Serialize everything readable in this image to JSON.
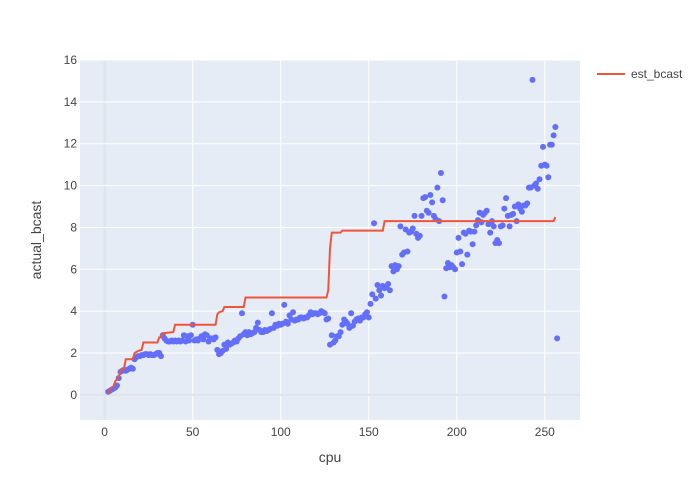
{
  "chart_data": {
    "type": "scatter",
    "xlabel": "cpu",
    "ylabel": "actual_bcast",
    "xlim": [
      -14,
      270
    ],
    "ylim": [
      -1.2,
      16
    ],
    "x_ticks": [
      0,
      50,
      100,
      150,
      200,
      250
    ],
    "y_ticks": [
      0,
      2,
      4,
      6,
      8,
      10,
      12,
      14,
      16
    ],
    "grid": true,
    "legend_position": "top-right",
    "colors": {
      "scatter": "#636efa",
      "line": "#ef553b",
      "grid": "#ebedf2",
      "zeroline": "#dfe3ea",
      "axis_text": "#444444"
    },
    "series": [
      {
        "type": "scatter",
        "points": [
          [
            2,
            0.15
          ],
          [
            3,
            0.2
          ],
          [
            4,
            0.25
          ],
          [
            5,
            0.3
          ],
          [
            6,
            0.35
          ],
          [
            7,
            0.45
          ],
          [
            8,
            0.8
          ],
          [
            9,
            1.1
          ],
          [
            10,
            1.15
          ],
          [
            11,
            1.2
          ],
          [
            12,
            1.15
          ],
          [
            13,
            1.2
          ],
          [
            14,
            1.25
          ],
          [
            15,
            1.3
          ],
          [
            16,
            1.25
          ],
          [
            17,
            1.7
          ],
          [
            18,
            1.8
          ],
          [
            19,
            1.85
          ],
          [
            20,
            1.85
          ],
          [
            21,
            1.9
          ],
          [
            22,
            1.9
          ],
          [
            23,
            1.95
          ],
          [
            24,
            1.95
          ],
          [
            25,
            1.9
          ],
          [
            26,
            1.95
          ],
          [
            27,
            1.9
          ],
          [
            28,
            1.9
          ],
          [
            29,
            1.95
          ],
          [
            30,
            2.0
          ],
          [
            31,
            2.0
          ],
          [
            32,
            1.85
          ],
          [
            33,
            2.85
          ],
          [
            34,
            2.7
          ],
          [
            35,
            2.6
          ],
          [
            36,
            2.55
          ],
          [
            37,
            2.55
          ],
          [
            38,
            2.6
          ],
          [
            39,
            2.55
          ],
          [
            40,
            2.6
          ],
          [
            41,
            2.55
          ],
          [
            42,
            2.6
          ],
          [
            43,
            2.55
          ],
          [
            44,
            2.6
          ],
          [
            45,
            2.85
          ],
          [
            46,
            2.55
          ],
          [
            47,
            2.8
          ],
          [
            48,
            2.6
          ],
          [
            49,
            2.85
          ],
          [
            50,
            3.35
          ],
          [
            51,
            2.6
          ],
          [
            52,
            2.65
          ],
          [
            53,
            2.6
          ],
          [
            54,
            2.7
          ],
          [
            55,
            2.8
          ],
          [
            56,
            2.65
          ],
          [
            57,
            2.9
          ],
          [
            58,
            2.85
          ],
          [
            59,
            2.55
          ],
          [
            60,
            2.7
          ],
          [
            61,
            2.7
          ],
          [
            62,
            2.65
          ],
          [
            63,
            2.75
          ],
          [
            64,
            2.15
          ],
          [
            65,
            1.95
          ],
          [
            66,
            2.0
          ],
          [
            67,
            2.1
          ],
          [
            68,
            2.4
          ],
          [
            69,
            2.2
          ],
          [
            70,
            2.5
          ],
          [
            71,
            2.4
          ],
          [
            72,
            2.45
          ],
          [
            73,
            2.5
          ],
          [
            74,
            2.6
          ],
          [
            75,
            2.55
          ],
          [
            76,
            2.7
          ],
          [
            77,
            2.8
          ],
          [
            78,
            3.9
          ],
          [
            79,
            2.9
          ],
          [
            80,
            3.0
          ],
          [
            81,
            2.85
          ],
          [
            82,
            3.0
          ],
          [
            83,
            2.9
          ],
          [
            84,
            2.95
          ],
          [
            85,
            3.0
          ],
          [
            86,
            3.2
          ],
          [
            87,
            3.45
          ],
          [
            88,
            3.1
          ],
          [
            89,
            3.0
          ],
          [
            90,
            3.0
          ],
          [
            91,
            3.1
          ],
          [
            92,
            3.05
          ],
          [
            93,
            3.1
          ],
          [
            94,
            3.15
          ],
          [
            95,
            3.9
          ],
          [
            96,
            3.2
          ],
          [
            97,
            3.35
          ],
          [
            98,
            3.3
          ],
          [
            99,
            3.4
          ],
          [
            100,
            3.35
          ],
          [
            101,
            3.4
          ],
          [
            102,
            4.3
          ],
          [
            103,
            3.5
          ],
          [
            104,
            3.4
          ],
          [
            105,
            3.8
          ],
          [
            106,
            3.6
          ],
          [
            107,
            3.95
          ],
          [
            108,
            3.55
          ],
          [
            109,
            3.6
          ],
          [
            110,
            3.6
          ],
          [
            111,
            3.7
          ],
          [
            112,
            3.7
          ],
          [
            113,
            3.65
          ],
          [
            114,
            3.7
          ],
          [
            115,
            3.7
          ],
          [
            116,
            3.8
          ],
          [
            117,
            3.95
          ],
          [
            118,
            3.85
          ],
          [
            119,
            3.9
          ],
          [
            120,
            3.9
          ],
          [
            121,
            3.85
          ],
          [
            122,
            3.9
          ],
          [
            123,
            4.0
          ],
          [
            124,
            3.95
          ],
          [
            125,
            3.9
          ],
          [
            126,
            3.6
          ],
          [
            127,
            3.65
          ],
          [
            128,
            2.4
          ],
          [
            129,
            2.85
          ],
          [
            130,
            2.5
          ],
          [
            131,
            2.6
          ],
          [
            132,
            2.8
          ],
          [
            133,
            2.8
          ],
          [
            134,
            3.0
          ],
          [
            135,
            3.35
          ],
          [
            136,
            3.6
          ],
          [
            137,
            3.5
          ],
          [
            138,
            3.4
          ],
          [
            139,
            3.2
          ],
          [
            140,
            3.9
          ],
          [
            141,
            3.3
          ],
          [
            142,
            3.5
          ],
          [
            143,
            3.6
          ],
          [
            144,
            3.65
          ],
          [
            145,
            3.55
          ],
          [
            146,
            3.7
          ],
          [
            147,
            3.7
          ],
          [
            148,
            3.85
          ],
          [
            149,
            3.95
          ],
          [
            150,
            3.7
          ],
          [
            151,
            4.35
          ],
          [
            152,
            4.8
          ],
          [
            153,
            8.2
          ],
          [
            154,
            4.6
          ],
          [
            155,
            5.25
          ],
          [
            156,
            5.0
          ],
          [
            157,
            4.75
          ],
          [
            158,
            5.2
          ],
          [
            159,
            5.1
          ],
          [
            160,
            5.15
          ],
          [
            161,
            5.3
          ],
          [
            162,
            5.0
          ],
          [
            163,
            6.15
          ],
          [
            164,
            5.9
          ],
          [
            165,
            6.2
          ],
          [
            166,
            6.0
          ],
          [
            167,
            6.15
          ],
          [
            168,
            8.05
          ],
          [
            169,
            6.7
          ],
          [
            170,
            6.8
          ],
          [
            171,
            7.9
          ],
          [
            172,
            6.85
          ],
          [
            173,
            7.75
          ],
          [
            174,
            7.8
          ],
          [
            175,
            7.95
          ],
          [
            176,
            8.55
          ],
          [
            177,
            7.7
          ],
          [
            178,
            7.5
          ],
          [
            179,
            7.6
          ],
          [
            180,
            8.55
          ],
          [
            181,
            9.4
          ],
          [
            182,
            9.45
          ],
          [
            183,
            8.8
          ],
          [
            184,
            8.7
          ],
          [
            185,
            9.55
          ],
          [
            186,
            9.2
          ],
          [
            187,
            8.55
          ],
          [
            188,
            8.4
          ],
          [
            189,
            9.9
          ],
          [
            190,
            8.3
          ],
          [
            191,
            10.6
          ],
          [
            192,
            9.3
          ],
          [
            193,
            4.7
          ],
          [
            194,
            6.05
          ],
          [
            195,
            6.3
          ],
          [
            196,
            6.1
          ],
          [
            197,
            6.2
          ],
          [
            198,
            6.1
          ],
          [
            199,
            6.0
          ],
          [
            200,
            6.8
          ],
          [
            201,
            7.5
          ],
          [
            202,
            6.85
          ],
          [
            203,
            6.25
          ],
          [
            204,
            7.75
          ],
          [
            205,
            7.7
          ],
          [
            206,
            6.7
          ],
          [
            207,
            7.85
          ],
          [
            208,
            7.8
          ],
          [
            209,
            7.2
          ],
          [
            210,
            7.8
          ],
          [
            211,
            8.1
          ],
          [
            212,
            8.35
          ],
          [
            213,
            8.7
          ],
          [
            214,
            8.25
          ],
          [
            215,
            8.6
          ],
          [
            216,
            8.7
          ],
          [
            217,
            8.8
          ],
          [
            218,
            8.15
          ],
          [
            219,
            7.75
          ],
          [
            220,
            8.3
          ],
          [
            221,
            8.05
          ],
          [
            222,
            7.25
          ],
          [
            223,
            7.4
          ],
          [
            224,
            7.25
          ],
          [
            225,
            8.05
          ],
          [
            226,
            8.1
          ],
          [
            227,
            8.9
          ],
          [
            228,
            9.4
          ],
          [
            229,
            8.55
          ],
          [
            230,
            8.05
          ],
          [
            231,
            8.6
          ],
          [
            232,
            8.65
          ],
          [
            233,
            9.0
          ],
          [
            234,
            8.3
          ],
          [
            235,
            9.1
          ],
          [
            236,
            8.9
          ],
          [
            237,
            8.75
          ],
          [
            238,
            9.05
          ],
          [
            239,
            9.05
          ],
          [
            240,
            9.15
          ],
          [
            241,
            9.9
          ],
          [
            242,
            9.9
          ],
          [
            243,
            15.05
          ],
          [
            244,
            10.0
          ],
          [
            245,
            10.1
          ],
          [
            246,
            9.85
          ],
          [
            247,
            10.3
          ],
          [
            248,
            10.95
          ],
          [
            249,
            11.85
          ],
          [
            250,
            11.0
          ],
          [
            251,
            10.95
          ],
          [
            252,
            10.4
          ],
          [
            253,
            11.95
          ],
          [
            254,
            11.95
          ],
          [
            255,
            12.4
          ],
          [
            256,
            12.8
          ],
          [
            257,
            2.7
          ]
        ]
      },
      {
        "name": "est_bcast",
        "type": "line",
        "points": [
          [
            2,
            0.05
          ],
          [
            3,
            0.25
          ],
          [
            4,
            0.35
          ],
          [
            5,
            0.4
          ],
          [
            6,
            0.65
          ],
          [
            7,
            0.75
          ],
          [
            8,
            0.85
          ],
          [
            9,
            1.15
          ],
          [
            10,
            1.2
          ],
          [
            11,
            1.25
          ],
          [
            12,
            1.7
          ],
          [
            16,
            1.7
          ],
          [
            17,
            2.0
          ],
          [
            18,
            2.05
          ],
          [
            19,
            2.1
          ],
          [
            21,
            2.15
          ],
          [
            22,
            2.5
          ],
          [
            30,
            2.5
          ],
          [
            31,
            2.75
          ],
          [
            32,
            2.75
          ],
          [
            33,
            2.95
          ],
          [
            34,
            2.95
          ],
          [
            39,
            3.0
          ],
          [
            40,
            3.35
          ],
          [
            63,
            3.35
          ],
          [
            64,
            3.85
          ],
          [
            65,
            3.95
          ],
          [
            67,
            4.0
          ],
          [
            68,
            4.2
          ],
          [
            79,
            4.2
          ],
          [
            80,
            4.65
          ],
          [
            126,
            4.65
          ],
          [
            127,
            5.0
          ],
          [
            128,
            7.0
          ],
          [
            129,
            7.75
          ],
          [
            134,
            7.75
          ],
          [
            135,
            7.85
          ],
          [
            158,
            7.85
          ],
          [
            159,
            8.3
          ],
          [
            255,
            8.3
          ],
          [
            256,
            8.5
          ]
        ]
      }
    ]
  }
}
